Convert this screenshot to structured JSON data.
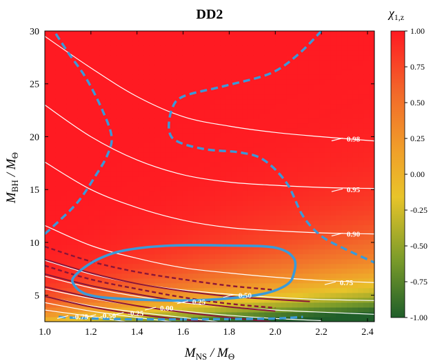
{
  "chart_data": {
    "type": "heatmap",
    "title": "DD2",
    "xlabel_main": "M",
    "xlabel_sub": "NS",
    "xlabel_tail": " / M",
    "xlabel_sub2": "Θ",
    "ylabel_main": "M",
    "ylabel_sub": "BH",
    "ylabel_tail": " / M",
    "ylabel_sub2": "Θ",
    "colorbar_label_main": "χ",
    "colorbar_label_sub": "1,z",
    "xlim": [
      1.0,
      2.43
    ],
    "ylim": [
      2.5,
      30
    ],
    "x_ticks": [
      1.0,
      1.2,
      1.4,
      1.6,
      1.8,
      2.0,
      2.2,
      2.4
    ],
    "x_tick_labels": [
      "1.0",
      "1.2",
      "1.4",
      "1.6",
      "1.8",
      "2.0",
      "2.2",
      "2.4"
    ],
    "y_ticks": [
      5,
      10,
      15,
      20,
      25,
      30
    ],
    "y_tick_labels": [
      "5",
      "10",
      "15",
      "20",
      "25",
      "30"
    ],
    "colorbar_range": [
      -1.0,
      1.0
    ],
    "colorbar_ticks": [
      1.0,
      0.75,
      0.5,
      0.25,
      0.0,
      -0.25,
      -0.5,
      -0.75,
      -1.0
    ],
    "colorbar_tick_labels": [
      "1.00",
      "0.75",
      "0.50",
      "0.25",
      "0.00",
      "-0.25",
      "-0.50",
      "-0.75",
      "-1.00"
    ],
    "colormap": [
      "#1f5e2a",
      "#7a9b2a",
      "#e8c42a",
      "#f0a02a",
      "#f26a2a",
      "#ff1a22"
    ],
    "white_contours": [
      {
        "label": "0.98",
        "label_pos": [
          2.31,
          19.8
        ],
        "points": [
          [
            1.0,
            29.5
          ],
          [
            1.2,
            26.5
          ],
          [
            1.4,
            23.8
          ],
          [
            1.6,
            21.9
          ],
          [
            1.8,
            21.0
          ],
          [
            2.0,
            20.4
          ],
          [
            2.2,
            20.0
          ],
          [
            2.43,
            19.6
          ]
        ]
      },
      {
        "label": "0.95",
        "label_pos": [
          2.31,
          15.0
        ],
        "points": [
          [
            1.0,
            23.0
          ],
          [
            1.2,
            20.0
          ],
          [
            1.4,
            17.8
          ],
          [
            1.6,
            16.4
          ],
          [
            1.8,
            15.7
          ],
          [
            2.0,
            15.4
          ],
          [
            2.2,
            15.2
          ],
          [
            2.43,
            15.1
          ]
        ]
      },
      {
        "label": "0.90",
        "label_pos": [
          2.31,
          10.8
        ],
        "points": [
          [
            1.0,
            17.6
          ],
          [
            1.2,
            15.0
          ],
          [
            1.4,
            13.3
          ],
          [
            1.6,
            12.1
          ],
          [
            1.8,
            11.4
          ],
          [
            2.0,
            11.1
          ],
          [
            2.2,
            10.9
          ],
          [
            2.43,
            10.8
          ]
        ]
      },
      {
        "label": "0.75",
        "label_pos": [
          2.28,
          6.2
        ],
        "points": [
          [
            1.0,
            11.6
          ],
          [
            1.2,
            9.7
          ],
          [
            1.4,
            8.5
          ],
          [
            1.6,
            7.6
          ],
          [
            1.8,
            7.1
          ],
          [
            2.0,
            6.7
          ],
          [
            2.2,
            6.4
          ],
          [
            2.43,
            6.2
          ]
        ]
      },
      {
        "label": "0.50",
        "label_pos": [
          1.84,
          5.0
        ],
        "points": [
          [
            1.0,
            8.3
          ],
          [
            1.2,
            7.0
          ],
          [
            1.4,
            6.1
          ],
          [
            1.6,
            5.5
          ],
          [
            1.8,
            5.1
          ],
          [
            2.0,
            4.8
          ],
          [
            2.2,
            4.6
          ],
          [
            2.43,
            4.5
          ]
        ]
      },
      {
        "label": "0.25",
        "label_pos": [
          1.64,
          4.4
        ],
        "points": [
          [
            1.0,
            6.8
          ],
          [
            1.2,
            5.7
          ],
          [
            1.4,
            4.9
          ],
          [
            1.6,
            4.3
          ],
          [
            1.8,
            3.9
          ],
          [
            2.0,
            3.6
          ],
          [
            2.2,
            3.4
          ],
          [
            2.43,
            3.2
          ]
        ]
      },
      {
        "label": "0.00",
        "label_pos": [
          1.5,
          3.8
        ],
        "points": [
          [
            1.0,
            5.6
          ],
          [
            1.2,
            4.7
          ],
          [
            1.4,
            4.0
          ],
          [
            1.6,
            3.5
          ],
          [
            1.8,
            3.1
          ],
          [
            2.0,
            2.8
          ],
          [
            2.2,
            2.6
          ]
        ]
      },
      {
        "label": "-0.25",
        "label_pos": [
          1.36,
          3.3
        ],
        "points": [
          [
            1.0,
            4.9
          ],
          [
            1.2,
            4.0
          ],
          [
            1.4,
            3.4
          ],
          [
            1.6,
            2.9
          ],
          [
            1.75,
            2.5
          ]
        ]
      },
      {
        "label": "-0.50",
        "label_pos": [
          1.24,
          3.1
        ],
        "points": [
          [
            1.0,
            4.3
          ],
          [
            1.2,
            3.5
          ],
          [
            1.4,
            2.9
          ],
          [
            1.55,
            2.5
          ]
        ]
      },
      {
        "label": "-0.75",
        "label_pos": [
          1.12,
          3.0
        ],
        "points": [
          [
            1.0,
            3.6
          ],
          [
            1.2,
            3.0
          ],
          [
            1.35,
            2.5
          ]
        ]
      }
    ],
    "crimson_solid": [
      [
        [
          1.0,
          8.4
        ],
        [
          1.2,
          7.1
        ],
        [
          1.4,
          6.1
        ],
        [
          1.6,
          5.4
        ],
        [
          1.8,
          4.9
        ],
        [
          2.0,
          4.6
        ],
        [
          2.15,
          4.4
        ]
      ],
      [
        [
          1.0,
          7.0
        ],
        [
          1.2,
          5.9
        ],
        [
          1.4,
          5.1
        ],
        [
          1.6,
          4.4
        ],
        [
          1.8,
          3.9
        ],
        [
          2.0,
          3.5
        ]
      ],
      [
        [
          1.0,
          5.8
        ],
        [
          1.2,
          4.8
        ],
        [
          1.4,
          4.0
        ],
        [
          1.6,
          3.4
        ],
        [
          1.8,
          2.9
        ],
        [
          1.98,
          2.5
        ]
      ],
      [
        [
          1.0,
          4.9
        ],
        [
          1.2,
          3.9
        ],
        [
          1.4,
          3.2
        ],
        [
          1.6,
          2.7
        ],
        [
          1.7,
          2.5
        ]
      ]
    ],
    "crimson_dashed": [
      [
        [
          1.0,
          9.6
        ],
        [
          1.2,
          8.2
        ],
        [
          1.4,
          7.2
        ],
        [
          1.6,
          6.5
        ],
        [
          1.8,
          5.9
        ],
        [
          2.0,
          5.5
        ]
      ],
      [
        [
          1.0,
          7.8
        ],
        [
          1.2,
          6.5
        ],
        [
          1.4,
          5.6
        ],
        [
          1.6,
          4.8
        ],
        [
          1.8,
          4.2
        ],
        [
          2.0,
          3.8
        ]
      ]
    ],
    "blue_dashed": [
      [
        [
          1.0,
          10.8
        ],
        [
          1.08,
          12.4
        ],
        [
          1.15,
          14.0
        ],
        [
          1.22,
          16.3
        ],
        [
          1.27,
          18.2
        ],
        [
          1.29,
          20.0
        ],
        [
          1.25,
          22.5
        ],
        [
          1.18,
          25.5
        ],
        [
          1.1,
          28.0
        ],
        [
          1.04,
          30.0
        ]
      ],
      [
        [
          2.2,
          30.0
        ],
        [
          2.1,
          27.8
        ],
        [
          1.98,
          26.0
        ],
        [
          1.78,
          24.8
        ],
        [
          1.6,
          23.8
        ],
        [
          1.55,
          22.5
        ],
        [
          1.54,
          20.5
        ],
        [
          1.58,
          19.5
        ],
        [
          1.7,
          18.8
        ],
        [
          1.85,
          18.5
        ],
        [
          1.95,
          17.8
        ],
        [
          2.05,
          15.6
        ],
        [
          2.12,
          12.5
        ],
        [
          2.2,
          10.6
        ],
        [
          2.3,
          9.4
        ],
        [
          2.43,
          8.1
        ]
      ],
      [
        [
          1.06,
          2.95
        ],
        [
          1.2,
          2.8
        ],
        [
          1.4,
          2.72
        ],
        [
          1.6,
          2.72
        ],
        [
          1.8,
          2.75
        ],
        [
          2.0,
          2.8
        ],
        [
          2.12,
          2.95
        ]
      ]
    ],
    "blue_solid": [
      [
        1.14,
        5.6
      ],
      [
        1.12,
        6.5
      ],
      [
        1.17,
        7.6
      ],
      [
        1.25,
        8.6
      ],
      [
        1.36,
        9.3
      ],
      [
        1.55,
        9.7
      ],
      [
        1.8,
        9.7
      ],
      [
        2.0,
        9.5
      ],
      [
        2.08,
        8.5
      ],
      [
        2.08,
        7.0
      ],
      [
        2.05,
        6.0
      ],
      [
        1.96,
        5.2
      ],
      [
        1.8,
        4.7
      ],
      [
        1.6,
        4.5
      ],
      [
        1.4,
        4.6
      ],
      [
        1.25,
        4.8
      ],
      [
        1.18,
        5.1
      ],
      [
        1.14,
        5.6
      ]
    ]
  }
}
